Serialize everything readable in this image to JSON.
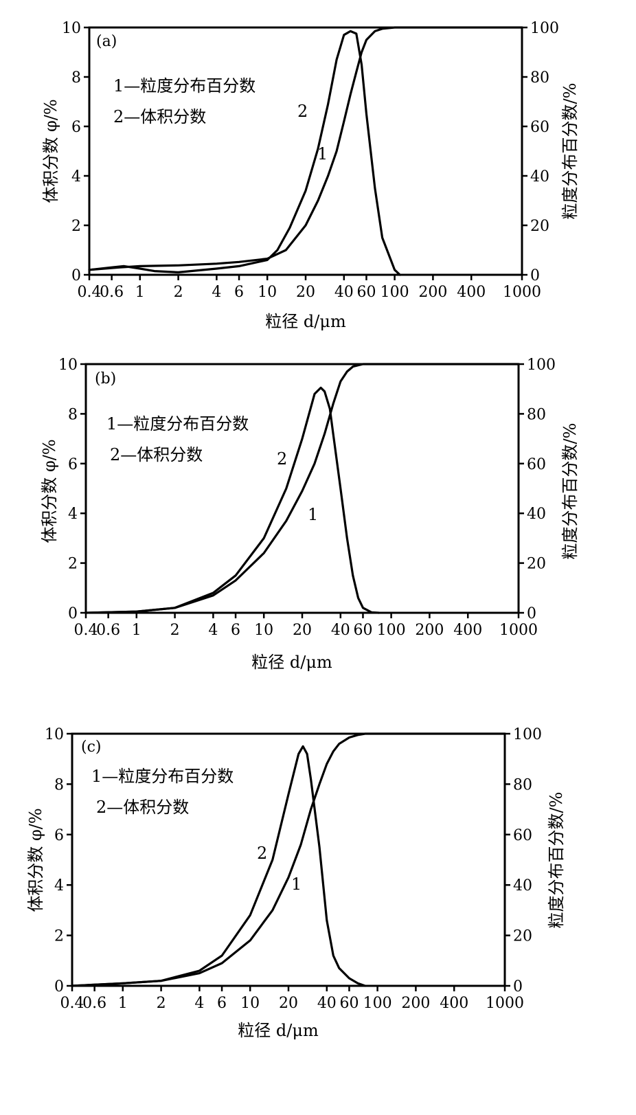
{
  "chart_data": [
    {
      "type": "line",
      "panel_tag": "(a)",
      "xlabel": "粒径 d/μm",
      "ylabel_left": "体积分数 φ/%",
      "ylabel_right": "粒度分布百分数/%",
      "xscale": "log",
      "xlim": [
        0.4,
        1000
      ],
      "ylim_left": [
        0,
        10
      ],
      "ylim_right": [
        0,
        100
      ],
      "x_ticks": [
        "0.4",
        "0.6",
        "1",
        "2",
        "4",
        "6",
        "10",
        "20",
        "40",
        "60",
        "100",
        "200",
        "400",
        "1000"
      ],
      "y_left_ticks": [
        "0",
        "2",
        "4",
        "6",
        "8",
        "10"
      ],
      "y_right_ticks": [
        "0",
        "20",
        "40",
        "60",
        "80",
        "100"
      ],
      "legend": [
        "1—粒度分布百分数",
        "2—体积分数"
      ],
      "series": [
        {
          "name": "1",
          "axis": "right",
          "x": [
            0.4,
            0.7,
            1,
            2,
            4,
            6,
            10,
            14,
            20,
            25,
            30,
            35,
            40,
            45,
            50,
            55,
            60,
            70,
            80,
            100,
            200,
            400,
            1000
          ],
          "values": [
            2,
            3,
            3.5,
            3.8,
            4.5,
            5.2,
            6.5,
            10,
            20,
            30,
            40,
            50,
            62,
            73,
            82,
            90,
            95,
            98.5,
            99.5,
            100,
            100,
            100,
            100
          ]
        },
        {
          "name": "2",
          "axis": "left",
          "x": [
            0.4,
            0.6,
            0.75,
            1,
            1.3,
            2,
            4,
            6,
            10,
            12,
            15,
            20,
            25,
            30,
            35,
            40,
            45,
            50,
            55,
            60,
            70,
            80,
            100,
            110
          ],
          "values": [
            0.2,
            0.3,
            0.35,
            0.25,
            0.15,
            0.1,
            0.25,
            0.35,
            0.6,
            1.0,
            1.9,
            3.4,
            5.1,
            6.9,
            8.7,
            9.7,
            9.85,
            9.75,
            8.5,
            6.5,
            3.5,
            1.5,
            0.2,
            0
          ]
        }
      ],
      "curve_labels": [
        "1",
        "2"
      ]
    },
    {
      "type": "line",
      "panel_tag": "(b)",
      "xlabel": "粒径 d/μm",
      "ylabel_left": "体积分数 φ/%",
      "ylabel_right": "粒度分布百分数/%",
      "xscale": "log",
      "xlim": [
        0.4,
        1000
      ],
      "ylim_left": [
        0,
        10
      ],
      "ylim_right": [
        0,
        100
      ],
      "x_ticks": [
        "0.4",
        "0.6",
        "1",
        "2",
        "4",
        "6",
        "10",
        "20",
        "40",
        "60",
        "100",
        "200",
        "400",
        "1000"
      ],
      "y_left_ticks": [
        "0",
        "2",
        "4",
        "6",
        "8",
        "10"
      ],
      "y_right_ticks": [
        "0",
        "20",
        "40",
        "60",
        "80",
        "100"
      ],
      "legend": [
        "1—粒度分布百分数",
        "2—体积分数"
      ],
      "series": [
        {
          "name": "1",
          "axis": "right",
          "x": [
            0.4,
            1,
            2,
            4,
            6,
            10,
            15,
            20,
            25,
            30,
            35,
            40,
            45,
            50,
            60,
            80,
            100,
            200,
            400,
            1000
          ],
          "values": [
            0,
            0.5,
            2,
            7,
            13,
            24,
            37,
            49,
            60,
            72,
            84,
            93,
            97,
            99,
            100,
            100,
            100,
            100,
            100,
            100
          ]
        },
        {
          "name": "2",
          "axis": "left",
          "x": [
            0.4,
            1,
            2,
            4,
            6,
            10,
            15,
            20,
            25,
            28,
            30,
            33,
            35,
            40,
            45,
            50,
            55,
            60,
            70,
            80
          ],
          "values": [
            0,
            0.05,
            0.2,
            0.8,
            1.5,
            3.0,
            5.0,
            7.0,
            8.8,
            9.05,
            8.9,
            8.2,
            7.2,
            5.0,
            3.0,
            1.5,
            0.6,
            0.2,
            0.02,
            0
          ]
        }
      ],
      "curve_labels": [
        "1",
        "2"
      ]
    },
    {
      "type": "line",
      "panel_tag": "(c)",
      "xlabel": "粒径 d/μm",
      "ylabel_left": "体积分数 φ/%",
      "ylabel_right": "粒度分布百分数/%",
      "xscale": "log",
      "xlim": [
        0.4,
        1000
      ],
      "ylim_left": [
        0,
        10
      ],
      "ylim_right": [
        0,
        100
      ],
      "x_ticks": [
        "0.4",
        "0.6",
        "1",
        "2",
        "4",
        "6",
        "10",
        "20",
        "40",
        "60",
        "100",
        "200",
        "400",
        "1000"
      ],
      "y_left_ticks": [
        "0",
        "2",
        "4",
        "6",
        "8",
        "10"
      ],
      "y_right_ticks": [
        "0",
        "20",
        "40",
        "60",
        "80",
        "100"
      ],
      "legend": [
        "1—粒度分布百分数",
        "2—体积分数"
      ],
      "series": [
        {
          "name": "1",
          "axis": "right",
          "x": [
            0.4,
            1,
            2,
            4,
            6,
            10,
            15,
            20,
            25,
            30,
            35,
            40,
            45,
            50,
            60,
            70,
            80,
            100,
            200,
            400,
            1000
          ],
          "values": [
            0,
            1,
            2,
            5,
            9,
            18,
            30,
            43,
            56,
            70,
            80,
            88,
            93,
            96,
            98.5,
            99.5,
            100,
            100,
            100,
            100,
            100
          ]
        },
        {
          "name": "2",
          "axis": "left",
          "x": [
            0.4,
            1,
            2,
            4,
            6,
            10,
            15,
            20,
            24,
            26,
            28,
            30,
            35,
            40,
            45,
            50,
            60,
            70,
            80
          ],
          "values": [
            0,
            0.1,
            0.2,
            0.6,
            1.2,
            2.8,
            5.0,
            7.6,
            9.2,
            9.5,
            9.2,
            8.2,
            5.5,
            2.6,
            1.2,
            0.7,
            0.3,
            0.1,
            0
          ]
        }
      ],
      "curve_labels": [
        "1",
        "2"
      ]
    }
  ]
}
